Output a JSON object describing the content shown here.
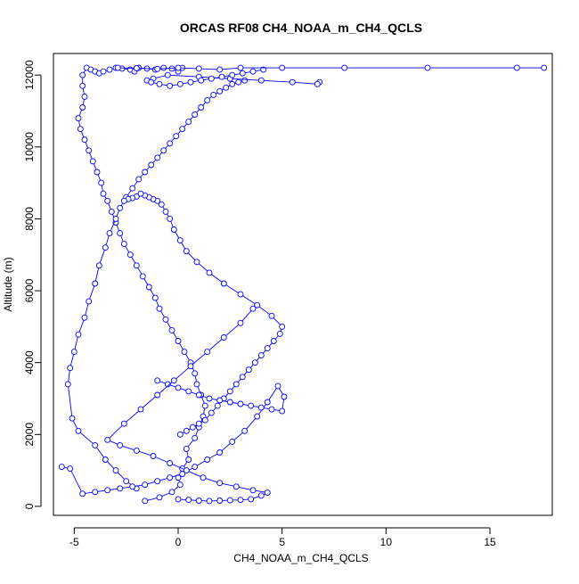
{
  "chart_data": {
    "type": "scatter",
    "title": "ORCAS RF08 CH4_NOAA_m_CH4_QCLS",
    "xlabel": "CH4_NOAA_m_CH4_QCLS",
    "ylabel": "Altitude (m)",
    "xlim": [
      -6.0,
      18.0
    ],
    "ylim": [
      -250,
      12600
    ],
    "x_ticks": [
      -5,
      0,
      5,
      10,
      15
    ],
    "x_tick_labels": [
      "-5",
      "0",
      "5",
      "10",
      "15"
    ],
    "y_ticks": [
      0,
      2000,
      4000,
      6000,
      8000,
      10000,
      12000
    ],
    "y_tick_labels": [
      "0",
      "2000",
      "4000",
      "6000",
      "8000",
      "10000",
      "12000"
    ],
    "grid": false,
    "legend": "none",
    "color": "#0000ff",
    "marker": "open-circle",
    "line": true,
    "series": [
      {
        "x": [
          -1.6,
          -0.9,
          -0.3,
          0.1,
          0.0,
          0.2,
          0.5,
          0.4,
          0.8,
          1.0,
          1.2,
          1.3,
          1.1,
          0.9,
          0.8,
          0.6,
          0.3,
          0.0,
          -0.3,
          -0.6,
          -0.9,
          -1.1,
          -1.4,
          -1.7,
          -2.0,
          -2.3,
          -2.6,
          -2.8,
          -3.0,
          -3.2,
          -3.4,
          -3.6,
          -3.7,
          -3.9,
          -4.1,
          -4.3,
          -4.5,
          -4.7,
          -4.8,
          -4.6,
          -4.5,
          -4.6,
          -4.6,
          -4.4,
          -4.2,
          -4.0,
          -3.8,
          -3.6,
          -3.3,
          -3.0,
          -2.7,
          -2.3,
          -2.1,
          -1.9,
          -1.5,
          -1.1,
          -0.7,
          -0.3,
          0.0,
          0.2
        ],
        "y": [
          150,
          250,
          400,
          600,
          800,
          1050,
          1300,
          1600,
          1900,
          2200,
          2500,
          2800,
          3100,
          3400,
          3700,
          4000,
          4300,
          4600,
          4900,
          5200,
          5500,
          5800,
          6100,
          6400,
          6700,
          7000,
          7300,
          7600,
          7900,
          8200,
          8500,
          8700,
          9000,
          9300,
          9600,
          9900,
          10200,
          10500,
          10800,
          11100,
          11400,
          11700,
          12000,
          12200,
          12150,
          12100,
          12050,
          12100,
          12150,
          12200,
          12180,
          12150,
          12100,
          12200,
          12180,
          12150,
          12200,
          12180,
          12100,
          12200
        ]
      },
      {
        "x": [
          -2.0,
          -2.5,
          -3.0,
          -3.5,
          -4.0,
          -4.8,
          -5.1,
          -5.3,
          -5.2,
          -5.0,
          -4.8,
          -4.5,
          -4.3,
          -4.0,
          -3.8,
          -3.5,
          -3.3,
          -3.0,
          -2.8,
          -2.5,
          -2.2,
          -1.9,
          -1.6,
          -1.3,
          -1.0,
          -0.7,
          -0.4,
          -0.1,
          0.2,
          0.5,
          0.8,
          1.1,
          1.4,
          1.7,
          2.0,
          2.3,
          2.6,
          2.9,
          3.2
        ],
        "y": [
          500,
          700,
          1000,
          1300,
          1700,
          2100,
          2450,
          3400,
          3850,
          4300,
          4780,
          5250,
          5700,
          6200,
          6700,
          7200,
          7600,
          8000,
          8300,
          8600,
          8850,
          9100,
          9300,
          9500,
          9700,
          9900,
          10100,
          10300,
          10500,
          10700,
          10900,
          11100,
          11300,
          11450,
          11550,
          11650,
          11750,
          11800,
          11850
        ]
      },
      {
        "x": [
          0.1,
          0.4,
          0.7,
          1.0,
          1.3,
          1.6,
          1.9,
          2.2,
          2.5,
          2.8,
          3.1,
          3.4,
          3.7,
          4.0,
          4.3,
          4.6,
          4.9,
          5.0,
          4.5,
          3.8,
          3.0,
          2.2,
          1.5,
          0.9,
          0.4,
          0.1,
          -0.2,
          -0.4,
          -0.6,
          -0.8,
          -1.0,
          -1.2,
          -1.4,
          -1.6,
          -1.8,
          -2.0,
          -2.2,
          -2.4,
          -2.6
        ],
        "y": [
          2000,
          2100,
          2200,
          2300,
          2400,
          2600,
          2800,
          3000,
          3200,
          3400,
          3600,
          3800,
          4000,
          4200,
          4400,
          4600,
          4800,
          5000,
          5300,
          5600,
          5900,
          6200,
          6500,
          6800,
          7100,
          7400,
          7700,
          8000,
          8200,
          8400,
          8500,
          8550,
          8600,
          8650,
          8700,
          8620,
          8580,
          8550,
          8500
        ]
      },
      {
        "x": [
          -1.0,
          -0.5,
          0.0,
          0.5,
          1.0,
          1.5,
          2.0,
          2.5,
          3.0,
          3.5,
          4.0,
          4.5,
          5.0,
          5.1,
          4.8,
          4.3,
          3.8,
          3.2,
          2.6,
          2.0,
          1.4,
          0.8,
          0.2,
          -0.4,
          -1.0,
          -1.6,
          -2.2,
          -2.8,
          -3.4,
          -4.0,
          -4.6,
          -5.2,
          -5.6
        ],
        "y": [
          3500,
          3400,
          3300,
          3200,
          3100,
          3000,
          2950,
          2900,
          2850,
          2800,
          2750,
          2700,
          2650,
          3050,
          3350,
          2900,
          2500,
          2100,
          1800,
          1500,
          1300,
          1100,
          900,
          800,
          700,
          600,
          550,
          500,
          450,
          400,
          350,
          1050,
          1100
        ]
      },
      {
        "x": [
          0.0,
          0.5,
          1.0,
          1.5,
          2.0,
          2.5,
          3.0,
          3.5,
          4.0,
          4.3,
          3.6,
          2.8,
          2.0,
          1.2,
          0.4,
          -0.4,
          -1.2,
          -2.0,
          -2.8,
          -3.4,
          -2.6,
          -1.8,
          -1.0,
          -0.2,
          0.6,
          1.4,
          2.2,
          3.0,
          3.6
        ],
        "y": [
          200,
          180,
          160,
          150,
          160,
          170,
          180,
          200,
          300,
          380,
          450,
          550,
          650,
          800,
          1000,
          1200,
          1400,
          1550,
          1700,
          1850,
          2300,
          2700,
          3100,
          3500,
          3900,
          4300,
          4700,
          5100,
          5500
        ]
      },
      {
        "x": [
          6.8,
          6.7,
          5.5,
          4.0,
          2.5,
          1.0,
          -0.5,
          -1.2,
          -1.5,
          -1.3,
          -0.9,
          -0.4,
          0.1,
          0.6,
          1.1,
          1.6,
          2.1,
          2.6,
          3.1,
          3.6,
          4.1
        ],
        "y": [
          11800,
          11750,
          11800,
          11850,
          11900,
          11950,
          12000,
          11900,
          11850,
          11800,
          11750,
          11700,
          11750,
          11800,
          11850,
          11900,
          11950,
          12000,
          12050,
          12100,
          12150
        ]
      },
      {
        "x": [
          17.6,
          16.3,
          12.0,
          8.0,
          5.0,
          3.0,
          2.0,
          1.0,
          0.0,
          -1.0,
          -2.0,
          -2.9
        ],
        "y": [
          12200,
          12200,
          12200,
          12200,
          12200,
          12200,
          12150,
          12180,
          12200,
          12170,
          12190,
          12200
        ]
      }
    ]
  }
}
